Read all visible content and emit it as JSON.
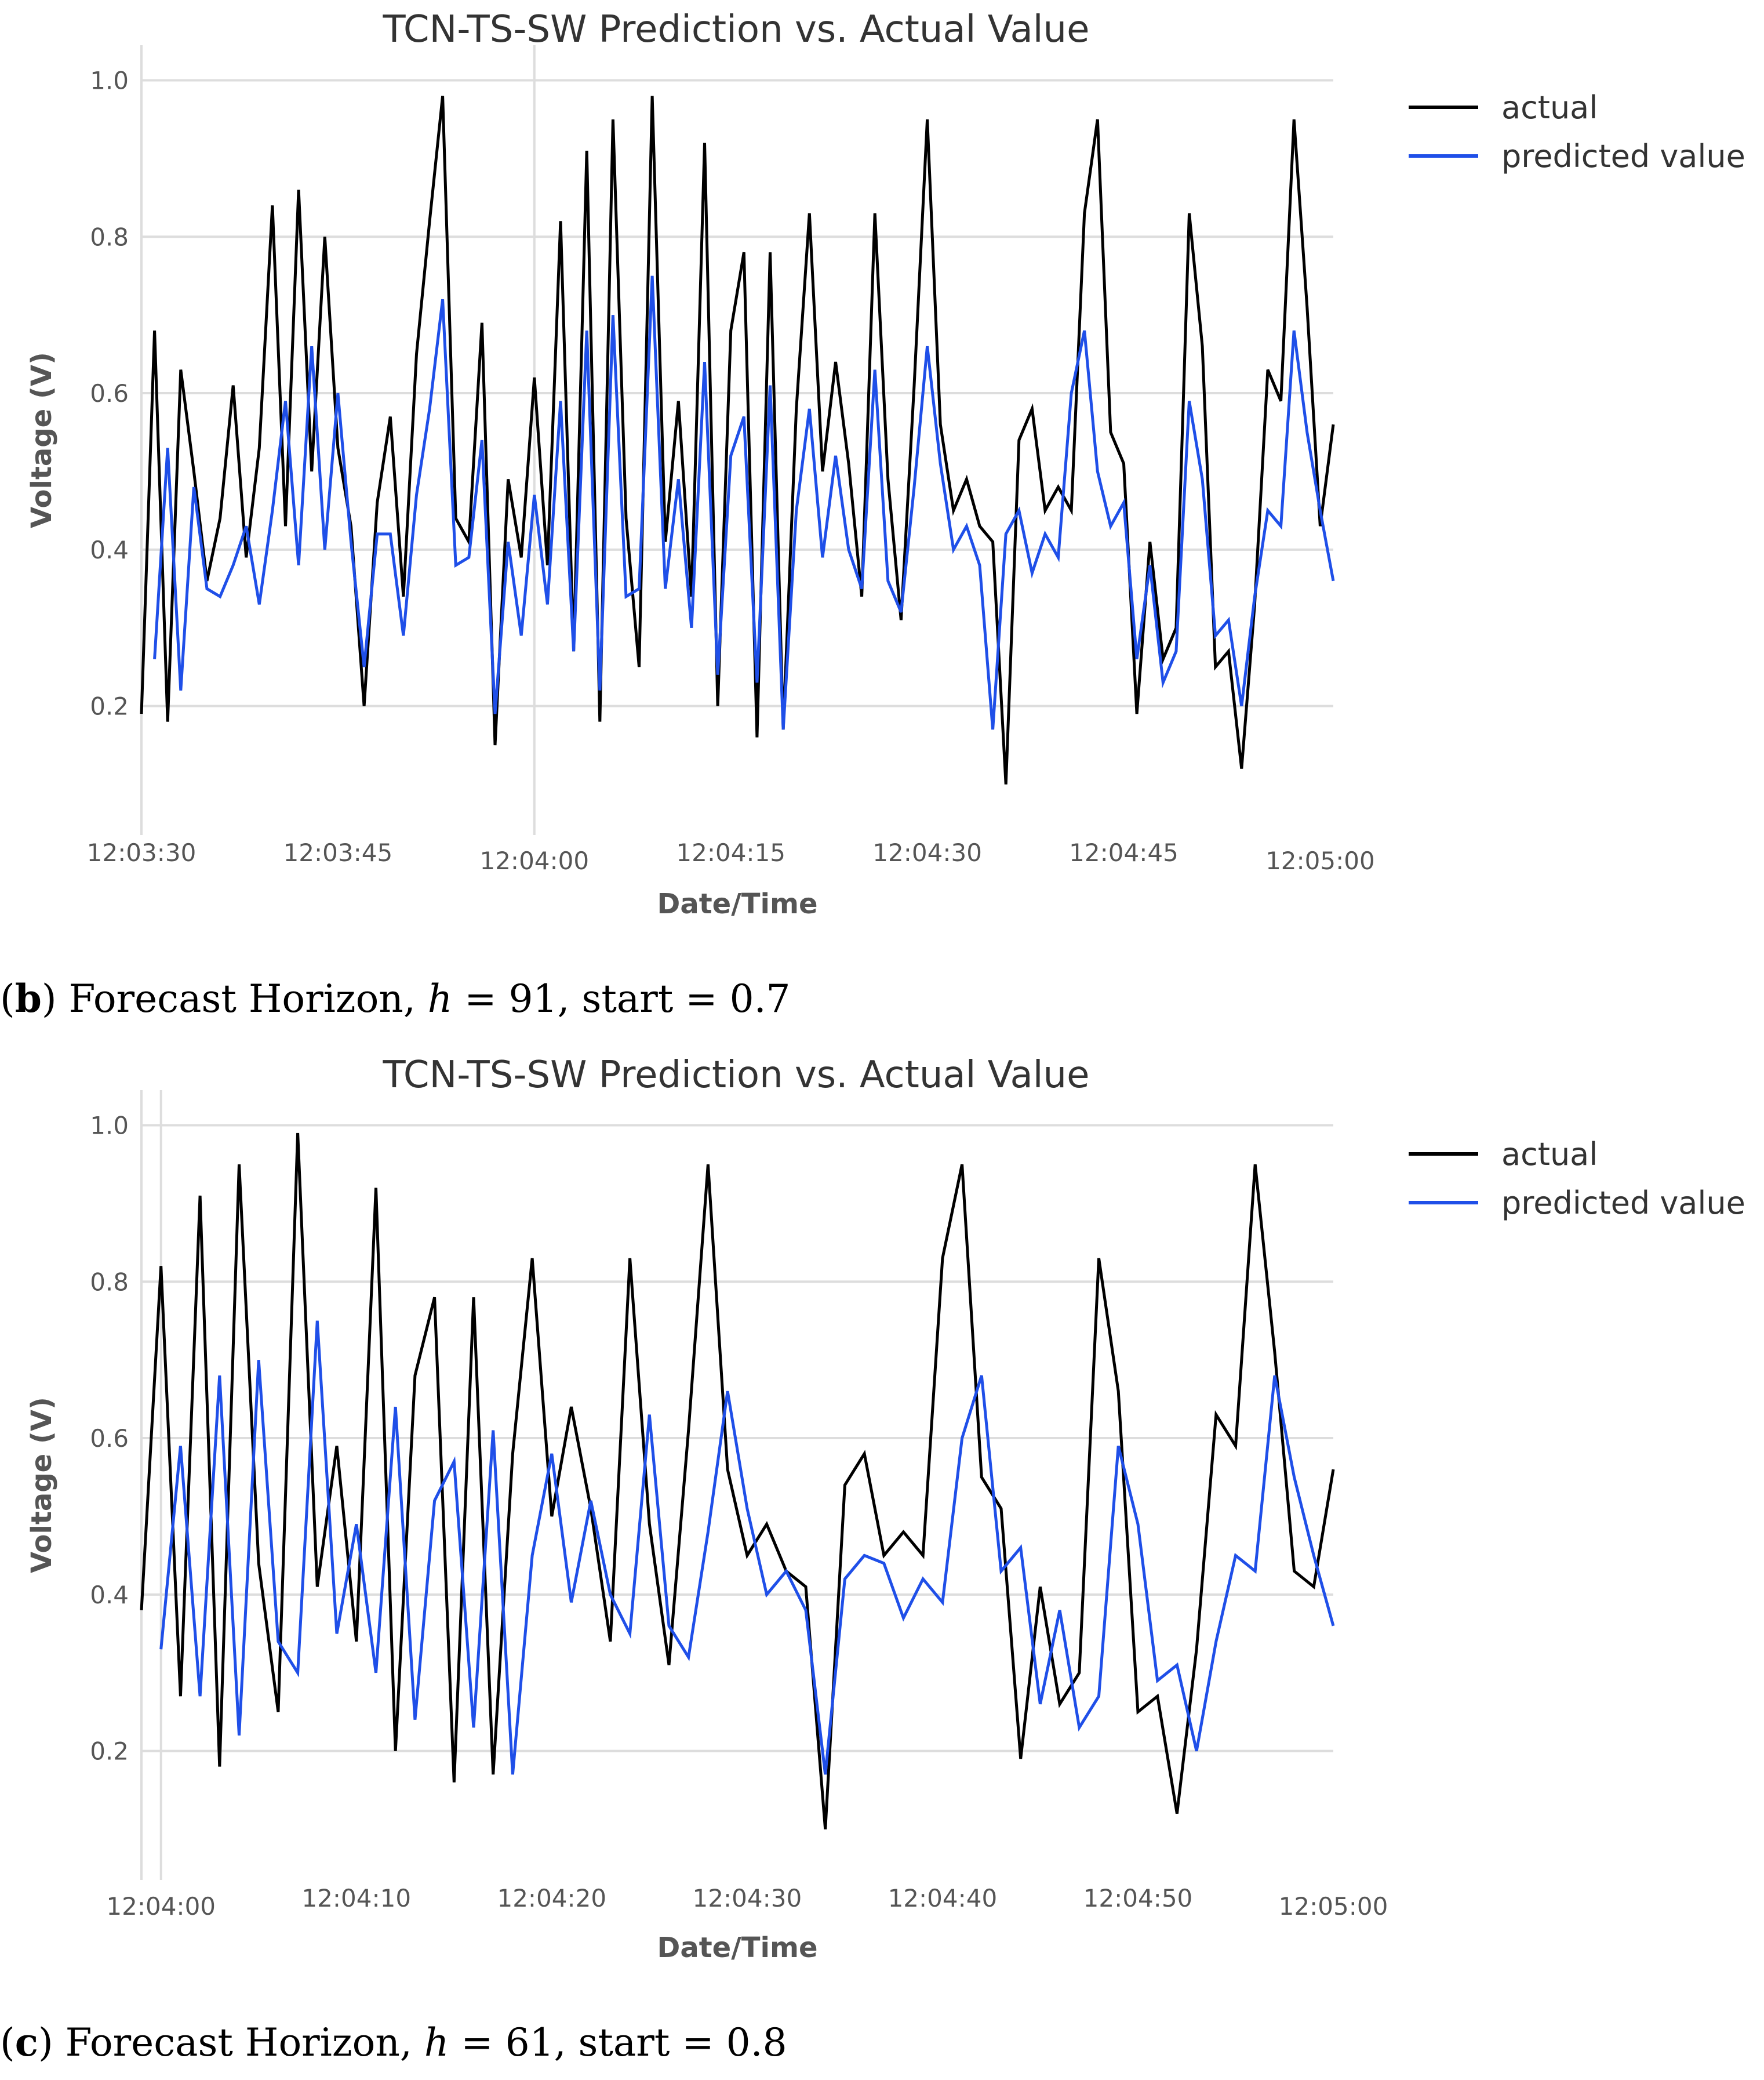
{
  "chart_data": [
    {
      "type": "line",
      "title": "TCN-TS-SW Prediction vs. Actual Value",
      "xlabel": "Date/Time",
      "ylabel": "Voltage (V)",
      "ylim": [
        0.05,
        1.03
      ],
      "yticks": [
        "0.2",
        "0.4",
        "0.6",
        "0.8",
        "1.0"
      ],
      "xrange_seconds": [
        0,
        91
      ],
      "xticks": [
        {
          "t": 0,
          "label": "12:03:30"
        },
        {
          "t": 15,
          "label": "12:03:45"
        },
        {
          "t": 30,
          "label": "12:04:00"
        },
        {
          "t": 45,
          "label": "12:04:15"
        },
        {
          "t": 60,
          "label": "12:04:30"
        },
        {
          "t": 75,
          "label": "12:04:45"
        },
        {
          "t": 90,
          "label": "12:05:00"
        }
      ],
      "legend_position": "right",
      "series": [
        {
          "name": "actual",
          "color": "#000000",
          "values": [
            0.19,
            0.68,
            0.18,
            0.63,
            0.5,
            0.36,
            0.44,
            0.61,
            0.39,
            0.53,
            0.84,
            0.43,
            0.86,
            0.5,
            0.8,
            0.53,
            0.43,
            0.2,
            0.46,
            0.57,
            0.34,
            0.65,
            0.82,
            0.98,
            0.44,
            0.41,
            0.69,
            0.15,
            0.49,
            0.39,
            0.62,
            0.38,
            0.82,
            0.27,
            0.91,
            0.18,
            0.95,
            0.44,
            0.25,
            0.98,
            0.41,
            0.59,
            0.34,
            0.92,
            0.2,
            0.68,
            0.78,
            0.16,
            0.78,
            0.17,
            0.58,
            0.83,
            0.5,
            0.64,
            0.51,
            0.34,
            0.83,
            0.49,
            0.31,
            0.61,
            0.95,
            0.56,
            0.45,
            0.49,
            0.43,
            0.41,
            0.1,
            0.54,
            0.58,
            0.45,
            0.48,
            0.45,
            0.83,
            0.95,
            0.55,
            0.51,
            0.19,
            0.41,
            0.26,
            0.3,
            0.83,
            0.66,
            0.25,
            0.27,
            0.12,
            0.33,
            0.63,
            0.59,
            0.95,
            0.71,
            0.43,
            0.56
          ]
        },
        {
          "name": "predicted value",
          "color": "#1f4fe8",
          "values": [
            null,
            0.26,
            0.53,
            0.22,
            0.48,
            0.35,
            0.34,
            0.38,
            0.43,
            0.33,
            0.45,
            0.59,
            0.38,
            0.66,
            0.4,
            0.6,
            0.41,
            0.25,
            0.42,
            0.42,
            0.29,
            0.47,
            0.58,
            0.72,
            0.38,
            0.39,
            0.54,
            0.19,
            0.41,
            0.29,
            0.47,
            0.33,
            0.59,
            0.27,
            0.68,
            0.22,
            0.7,
            0.34,
            0.35,
            0.75,
            0.35,
            0.49,
            0.3,
            0.64,
            0.24,
            0.52,
            0.57,
            0.23,
            0.61,
            0.17,
            0.45,
            0.58,
            0.39,
            0.52,
            0.4,
            0.35,
            0.63,
            0.36,
            0.32,
            0.48,
            0.66,
            0.51,
            0.4,
            0.43,
            0.38,
            0.17,
            0.42,
            0.45,
            0.37,
            0.42,
            0.39,
            0.6,
            0.68,
            0.5,
            0.43,
            0.46,
            0.26,
            0.38,
            0.23,
            0.27,
            0.59,
            0.49,
            0.29,
            0.31,
            0.2,
            0.34,
            0.45,
            0.43,
            0.68,
            0.55,
            0.45,
            0.36
          ]
        }
      ],
      "caption": {
        "label": "b",
        "text1": "Forecast Horizon,",
        "var": "h",
        "text2": "= 91, start = 0.7"
      }
    },
    {
      "type": "line",
      "title": "TCN-TS-SW Prediction vs. Actual Value",
      "xlabel": "Date/Time",
      "ylabel": "Voltage (V)",
      "ylim": [
        0.05,
        1.03
      ],
      "yticks": [
        "0.2",
        "0.4",
        "0.6",
        "0.8",
        "1.0"
      ],
      "xrange_seconds": [
        -1,
        60
      ],
      "xticks": [
        {
          "t": 0,
          "label": "12:04:00"
        },
        {
          "t": 10,
          "label": "12:04:10"
        },
        {
          "t": 20,
          "label": "12:04:20"
        },
        {
          "t": 30,
          "label": "12:04:30"
        },
        {
          "t": 40,
          "label": "12:04:40"
        },
        {
          "t": 50,
          "label": "12:04:50"
        },
        {
          "t": 60,
          "label": "12:05:00"
        }
      ],
      "legend_position": "right",
      "series": [
        {
          "name": "actual",
          "color": "#000000",
          "values": [
            0.38,
            0.82,
            0.27,
            0.91,
            0.18,
            0.95,
            0.44,
            0.25,
            0.99,
            0.41,
            0.59,
            0.34,
            0.92,
            0.2,
            0.68,
            0.78,
            0.16,
            0.78,
            0.17,
            0.58,
            0.83,
            0.5,
            0.64,
            0.51,
            0.34,
            0.83,
            0.49,
            0.31,
            0.61,
            0.95,
            0.56,
            0.45,
            0.49,
            0.43,
            0.41,
            0.1,
            0.54,
            0.58,
            0.45,
            0.48,
            0.45,
            0.83,
            0.95,
            0.55,
            0.51,
            0.19,
            0.41,
            0.26,
            0.3,
            0.83,
            0.66,
            0.25,
            0.27,
            0.12,
            0.33,
            0.63,
            0.59,
            0.95,
            0.71,
            0.43,
            0.41,
            0.56
          ]
        },
        {
          "name": "predicted value",
          "color": "#1f4fe8",
          "values": [
            null,
            0.33,
            0.59,
            0.27,
            0.68,
            0.22,
            0.7,
            0.34,
            0.3,
            0.75,
            0.35,
            0.49,
            0.3,
            0.64,
            0.24,
            0.52,
            0.57,
            0.23,
            0.61,
            0.17,
            0.45,
            0.58,
            0.39,
            0.52,
            0.4,
            0.35,
            0.63,
            0.36,
            0.32,
            0.48,
            0.66,
            0.51,
            0.4,
            0.43,
            0.38,
            0.17,
            0.42,
            0.45,
            0.44,
            0.37,
            0.42,
            0.39,
            0.6,
            0.68,
            0.43,
            0.46,
            0.26,
            0.38,
            0.23,
            0.27,
            0.59,
            0.49,
            0.29,
            0.31,
            0.2,
            0.34,
            0.45,
            0.43,
            0.68,
            0.55,
            0.45,
            0.36
          ]
        }
      ],
      "caption": {
        "label": "c",
        "text1": "Forecast Horizon,",
        "var": "h",
        "text2": "= 61, start = 0.8"
      }
    }
  ]
}
